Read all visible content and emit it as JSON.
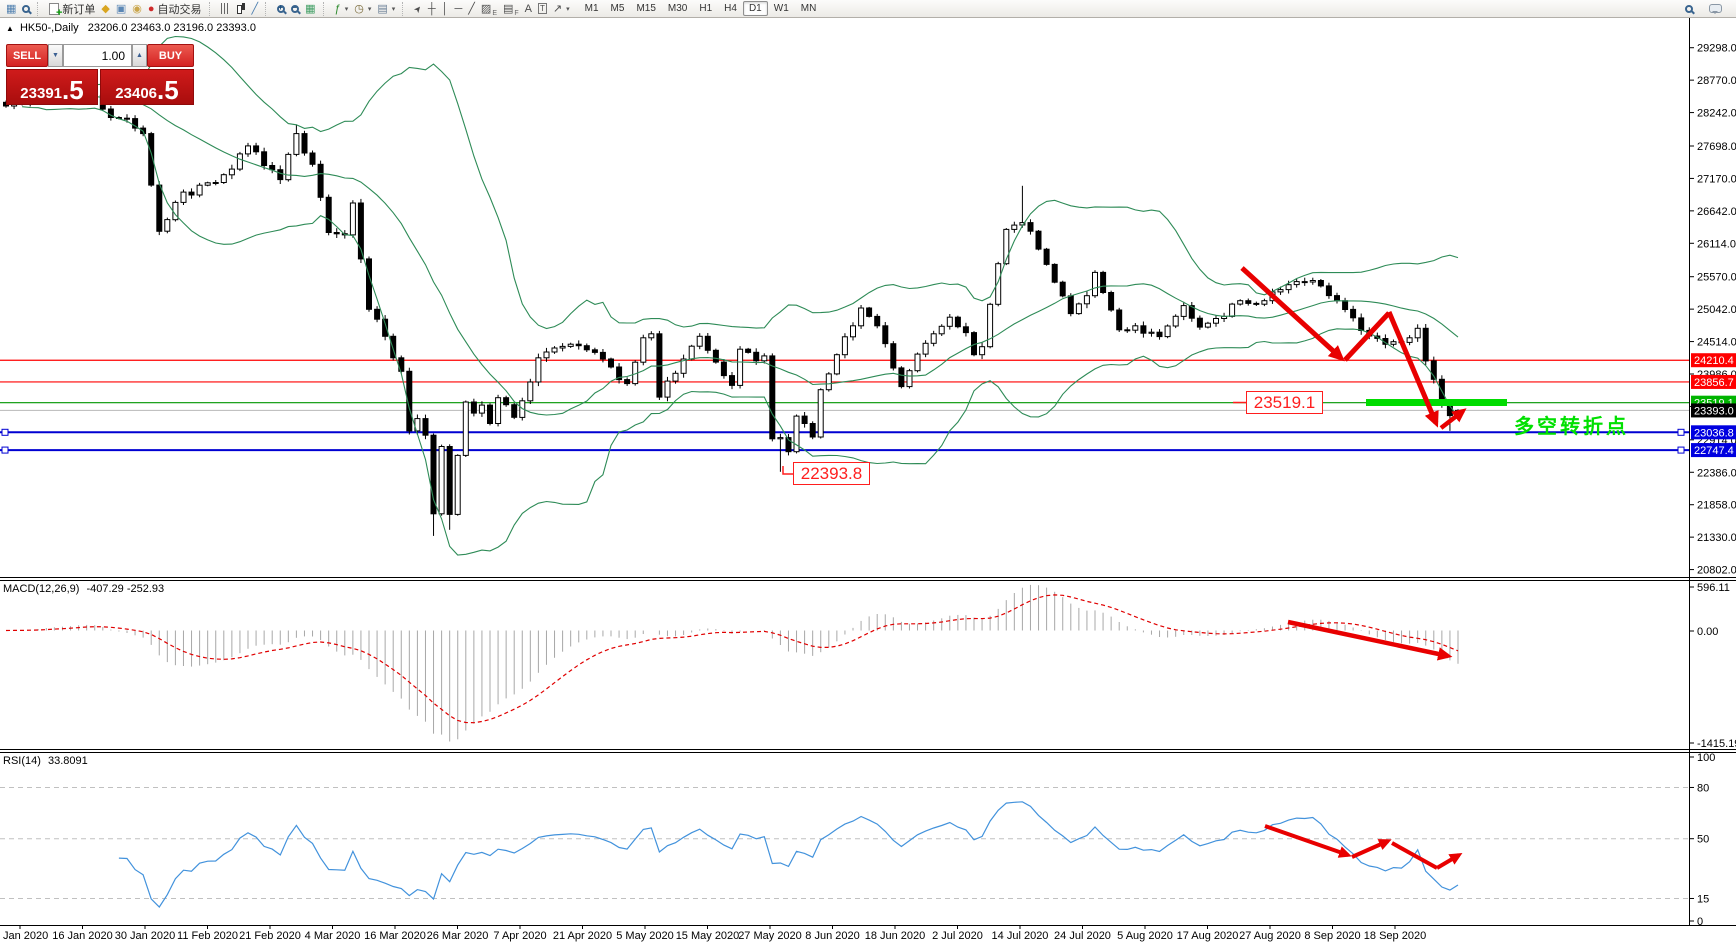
{
  "toolbar": {
    "new_order_label": "新订单",
    "autotrading_label": "自动交易",
    "timeframes": [
      "M1",
      "M5",
      "M15",
      "M30",
      "H1",
      "H4",
      "D1",
      "W1",
      "MN"
    ],
    "active_timeframe": "D1",
    "groups": [
      {
        "items": [
          {
            "name": "new-chart-icon",
            "glyph": "▦",
            "color": "#4f7faf"
          },
          {
            "name": "chart-profiles-icon",
            "css": "lens"
          }
        ]
      },
      {
        "items": [
          {
            "name": "new-order-button",
            "css": "doc",
            "label_key": "new_order_label"
          },
          {
            "name": "favorites-icon",
            "glyph": "◆",
            "color": "#d9a520"
          },
          {
            "name": "market-watch-icon",
            "glyph": "▣",
            "color": "#5b87b5"
          },
          {
            "name": "signals-icon",
            "glyph": "◉",
            "color": "#caa64b"
          },
          {
            "name": "autotrading-button",
            "glyph": "●",
            "color": "#cf2b2b",
            "label_key": "autotrading_label"
          }
        ]
      },
      {
        "items": [
          {
            "name": "bar-chart-icon",
            "css": "ic-bars"
          },
          {
            "name": "candlestick-icon",
            "css": "ic-candles"
          },
          {
            "name": "line-chart-icon",
            "glyph": "╱",
            "color": "#4a7dae"
          }
        ]
      },
      {
        "items": [
          {
            "name": "zoom-in-icon",
            "css": "lens",
            "pm": "+"
          },
          {
            "name": "zoom-out-icon",
            "css": "lens",
            "pm": "−"
          },
          {
            "name": "tile-windows-icon",
            "glyph": "▦",
            "color": "#3f9e63"
          }
        ]
      },
      {
        "items": [
          {
            "name": "indicators-icon",
            "glyph": "ƒ",
            "color": "#2c8a2c",
            "dropdown": true
          },
          {
            "name": "period-icon",
            "glyph": "◷",
            "color": "#7a6a3a",
            "dropdown": true
          },
          {
            "name": "templates-icon",
            "glyph": "▤",
            "color": "#6a7f96",
            "dropdown": true
          }
        ]
      },
      {
        "items": [
          {
            "name": "cursor-icon",
            "glyph": "➤",
            "cls": "rot315"
          },
          {
            "name": "crosshair-icon",
            "glyph": "┼"
          },
          {
            "name": "vertical-line-icon",
            "glyph": "│"
          },
          {
            "name": "horizontal-line-icon",
            "glyph": "─"
          },
          {
            "name": "trendline-icon",
            "glyph": "╱"
          },
          {
            "name": "equidistant-channel-icon",
            "glyph": "▨",
            "sub": "E"
          },
          {
            "name": "fibonacci-icon",
            "glyph": "▤",
            "sub": "F"
          },
          {
            "name": "text-icon",
            "glyph": "A"
          },
          {
            "name": "label-icon",
            "glyph": "T",
            "cls": "boxed"
          },
          {
            "name": "arrows-icon",
            "glyph": "↗",
            "dropdown": true
          }
        ]
      }
    ],
    "right_items": [
      {
        "name": "search-icon",
        "css": "lens"
      },
      {
        "name": "chat-icon",
        "css": "chat"
      }
    ]
  },
  "header": {
    "symbol": "HK50-,Daily",
    "ohlc": "23206.0 23463.0 23196.0 23393.0"
  },
  "trade_panel": {
    "sell_label": "SELL",
    "buy_label": "BUY",
    "volume": "1.00",
    "sell_main": "23391",
    "sell_pip": ".5",
    "buy_main": "23406",
    "buy_pip": ".5"
  },
  "annotations": {
    "support_label": "23519.1",
    "low_label": "22393.8",
    "turning_point_text": "多空转折点"
  },
  "price_axis": {
    "ticks": [
      29298.0,
      28770.0,
      28242.0,
      27698.0,
      27170.0,
      26642.0,
      26114.0,
      25570.0,
      25042.0,
      24514.0,
      23986.0,
      23458.0,
      22914.0,
      22386.0,
      21858.0,
      21330.0,
      20802.0
    ],
    "badges": [
      {
        "text": "24210.4",
        "price": 24210.4,
        "color": "#ff0000"
      },
      {
        "text": "23856.7",
        "price": 23856.7,
        "color": "#ff0000"
      },
      {
        "text": "23519.1",
        "price": 23519.1,
        "color": "#00b400"
      },
      {
        "text": "23393.0",
        "price": 23393.0,
        "color": "#000000"
      },
      {
        "text": "23036.8",
        "price": 23036.8,
        "color": "#0000e0"
      },
      {
        "text": "22747.4",
        "price": 22747.4,
        "color": "#0000e0"
      }
    ]
  },
  "date_axis": [
    "Jan 2020",
    "16 Jan 2020",
    "30 Jan 2020",
    "11 Feb 2020",
    "21 Feb 2020",
    "4 Mar 2020",
    "16 Mar 2020",
    "26 Mar 2020",
    "7 Apr 2020",
    "21 Apr 2020",
    "5 May 2020",
    "15 May 2020",
    "27 May 2020",
    "8 Jun 2020",
    "18 Jun 2020",
    "2 Jul 2020",
    "14 Jul 2020",
    "24 Jul 2020",
    "5 Aug 2020",
    "17 Aug 2020",
    "27 Aug 2020",
    "8 Sep 2020",
    "18 Sep 2020"
  ],
  "chart_data": {
    "type": "candlestick",
    "symbol": "HK50",
    "timeframe": "Daily",
    "bars": 181,
    "close_waypoints": [
      [
        0,
        28350
      ],
      [
        4,
        28460
      ],
      [
        8,
        28580
      ],
      [
        10,
        28620
      ],
      [
        12,
        28300
      ],
      [
        14,
        28150
      ],
      [
        16,
        27990
      ],
      [
        17,
        27900
      ],
      [
        19,
        26310
      ],
      [
        21,
        26780
      ],
      [
        24,
        27060
      ],
      [
        27,
        27230
      ],
      [
        30,
        27700
      ],
      [
        32,
        27380
      ],
      [
        34,
        27150
      ],
      [
        36,
        27900
      ],
      [
        38,
        27400
      ],
      [
        40,
        26290
      ],
      [
        42,
        26250
      ],
      [
        43,
        26770
      ],
      [
        45,
        25040
      ],
      [
        47,
        24600
      ],
      [
        49,
        24030
      ],
      [
        50,
        23060
      ],
      [
        51,
        23260
      ],
      [
        52,
        22990
      ],
      [
        53,
        21710
      ],
      [
        54,
        22805
      ],
      [
        55,
        21700
      ],
      [
        56,
        22660
      ],
      [
        57,
        23530
      ],
      [
        58,
        23350
      ],
      [
        59,
        23480
      ],
      [
        60,
        23180
      ],
      [
        61,
        23600
      ],
      [
        63,
        23280
      ],
      [
        66,
        24250
      ],
      [
        69,
        24435
      ],
      [
        72,
        24380
      ],
      [
        75,
        24100
      ],
      [
        77,
        23830
      ],
      [
        79,
        24575
      ],
      [
        80,
        24640
      ],
      [
        81,
        23610
      ],
      [
        82,
        23870
      ],
      [
        84,
        24230
      ],
      [
        86,
        24600
      ],
      [
        88,
        24180
      ],
      [
        90,
        23800
      ],
      [
        91,
        24390
      ],
      [
        93,
        24200
      ],
      [
        94,
        24280
      ],
      [
        95,
        22930
      ],
      [
        96,
        22950
      ],
      [
        97,
        22720
      ],
      [
        98,
        23300
      ],
      [
        99,
        23180
      ],
      [
        100,
        22960
      ],
      [
        101,
        23730
      ],
      [
        103,
        24300
      ],
      [
        105,
        24770
      ],
      [
        106,
        25060
      ],
      [
        108,
        24770
      ],
      [
        109,
        24480
      ],
      [
        111,
        23780
      ],
      [
        113,
        24310
      ],
      [
        115,
        24640
      ],
      [
        117,
        24910
      ],
      [
        119,
        24660
      ],
      [
        120,
        24300
      ],
      [
        121,
        24430
      ],
      [
        122,
        25120
      ],
      [
        124,
        26340
      ],
      [
        126,
        26450
      ],
      [
        127,
        26310
      ],
      [
        129,
        25770
      ],
      [
        130,
        25480
      ],
      [
        132,
        24970
      ],
      [
        134,
        25260
      ],
      [
        135,
        25640
      ],
      [
        138,
        24705
      ],
      [
        140,
        24770
      ],
      [
        143,
        24595
      ],
      [
        146,
        25100
      ],
      [
        148,
        24750
      ],
      [
        150,
        24890
      ],
      [
        153,
        25180
      ],
      [
        156,
        25180
      ],
      [
        158,
        25360
      ],
      [
        160,
        25490
      ],
      [
        163,
        25420
      ],
      [
        165,
        25180
      ],
      [
        167,
        24900
      ],
      [
        168,
        24695
      ],
      [
        171,
        24470
      ],
      [
        173,
        24500
      ],
      [
        175,
        24730
      ],
      [
        176,
        24200
      ],
      [
        177,
        23900
      ],
      [
        178,
        23500
      ],
      [
        179,
        23310
      ],
      [
        180,
        23393
      ]
    ],
    "wick_lows": {
      "53": 21350,
      "55": 21450,
      "96": 22394,
      "179": 23060
    },
    "wick_highs": {
      "10": 28870,
      "36": 28050,
      "126": 27050
    },
    "last_close": 23393.0,
    "levels": {
      "red": [
        24210.4,
        23856.7
      ],
      "green": [
        23519.1
      ],
      "blue": [
        23036.8,
        22747.4
      ],
      "current": 23393.0
    },
    "bollinger": {
      "period": 20,
      "deviation": 2,
      "color": "#2e8b57"
    },
    "macd": {
      "label": "MACD(12,26,9)",
      "values_text": "-407.29 -252.93",
      "axis_labels": [
        "596.11",
        "0.00",
        "-1415.19"
      ]
    },
    "rsi": {
      "label": "RSI(14)",
      "value": "33.8091",
      "axis_labels": [
        100,
        80,
        50,
        15,
        0
      ],
      "dashed_levels": [
        80,
        50,
        15
      ],
      "color": "#4292dc"
    }
  }
}
